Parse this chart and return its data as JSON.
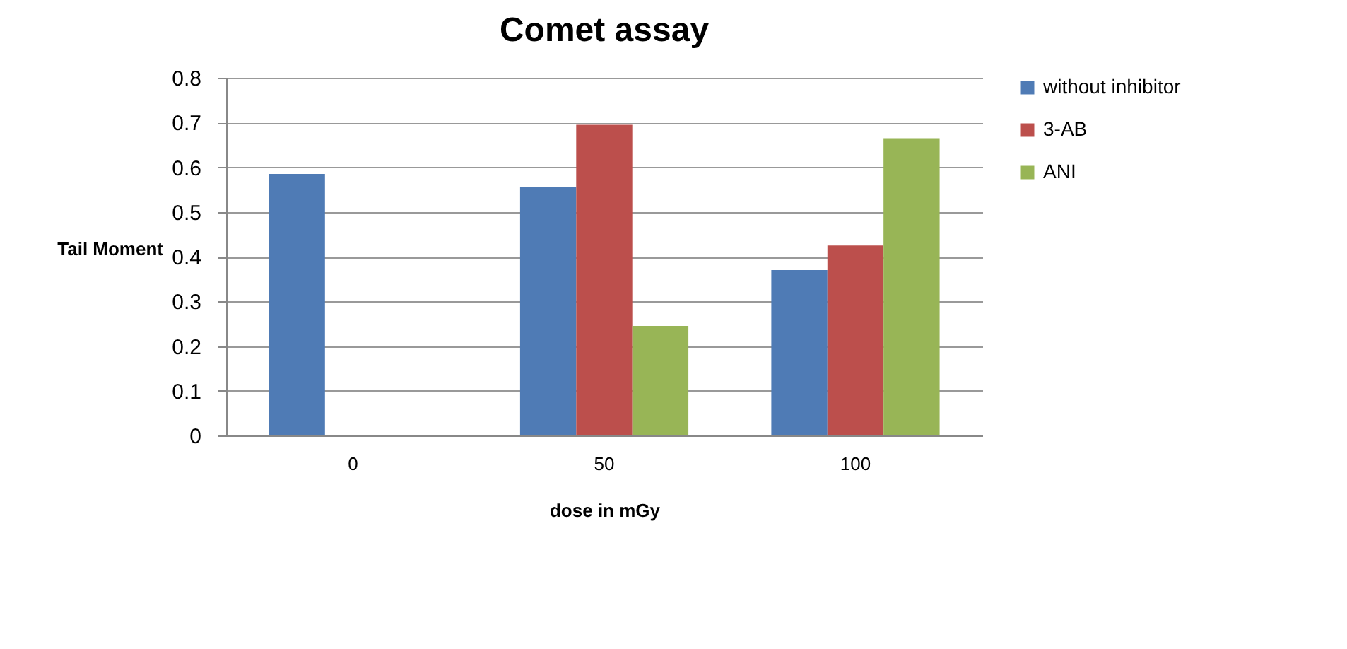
{
  "chart_data": {
    "type": "bar",
    "title": "Comet assay",
    "xlabel": "dose in mGy",
    "ylabel": "Tail Moment",
    "categories": [
      "0",
      "50",
      "100"
    ],
    "series": [
      {
        "name": "without inhibitor",
        "color": "#4f7bb5",
        "values": [
          0.585,
          0.555,
          0.37
        ]
      },
      {
        "name": "3-AB",
        "color": "#bc4f4c",
        "values": [
          null,
          0.695,
          0.425
        ]
      },
      {
        "name": "ANI",
        "color": "#98b556",
        "values": [
          null,
          0.245,
          0.665
        ]
      }
    ],
    "ylim": [
      0,
      0.8
    ],
    "yticks": [
      0,
      0.1,
      0.2,
      0.3,
      0.4,
      0.5,
      0.6,
      0.7,
      0.8
    ],
    "grid": "y",
    "legend": "right"
  }
}
